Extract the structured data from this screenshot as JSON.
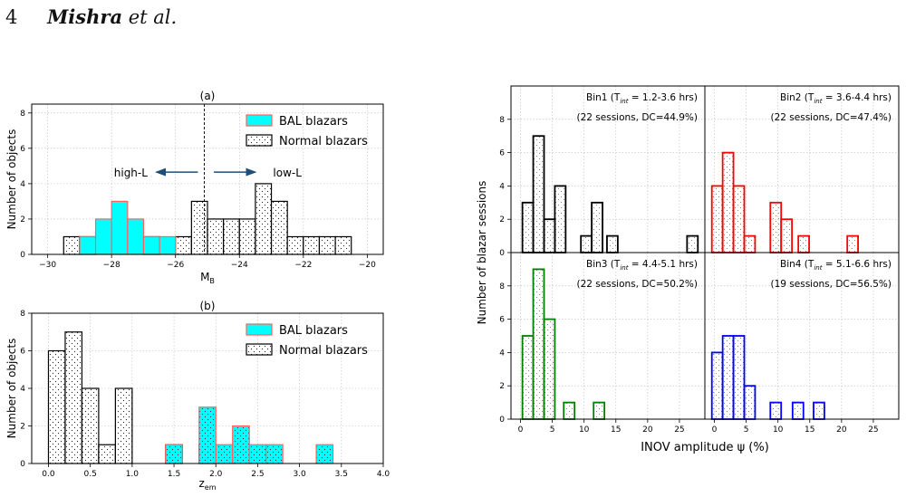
{
  "header": {
    "page_number": "4",
    "authors": "Mishra",
    "etal": "et al."
  },
  "patterns": {
    "normal": "dots-normal"
  },
  "chart_data": [
    {
      "id": "a",
      "type": "bar",
      "title": "(a)",
      "xlabel": "M",
      "xlabel_sub": "B",
      "ylabel": "Number of objects",
      "xlim": [
        -30.5,
        -19.5
      ],
      "ylim": [
        0,
        8.5
      ],
      "xticks": [
        -30,
        -28,
        -26,
        -24,
        -22,
        -20
      ],
      "xtick_labels": [
        "−30",
        "−28",
        "−26",
        "−24",
        "−22",
        "−20"
      ],
      "yticks": [
        0,
        2,
        4,
        6,
        8
      ],
      "ytick_labels": [
        "0",
        "2",
        "4",
        "6",
        "8"
      ],
      "bin_width": 0.5,
      "grid": true,
      "legend": "top-right",
      "vline": -25.1,
      "annotations": [
        {
          "text": "high-L",
          "x": -27.4,
          "y": 4.5,
          "arrow_from": -25.3,
          "arrow_to": -26.6
        },
        {
          "text": "low-L",
          "x": -22.5,
          "y": 4.5,
          "arrow_from": -24.8,
          "arrow_to": -23.5
        }
      ],
      "series": [
        {
          "name": "BAL blazars",
          "style": "bal",
          "color": "#00ffff",
          "edge": "#ff6060",
          "x_left": [
            -29.0,
            -28.5,
            -28.0,
            -27.5,
            -27.0,
            -26.5
          ],
          "values": [
            1,
            2,
            3,
            2,
            1,
            1
          ]
        },
        {
          "name": "Normal blazars",
          "style": "normal",
          "edge": "#000000",
          "x_left": [
            -29.5,
            -29.0,
            -27.0,
            -26.0,
            -25.5,
            -25.0,
            -24.5,
            -24.0,
            -23.5,
            -23.0,
            -22.5,
            -22.0,
            -21.5,
            -21.0
          ],
          "values": [
            1,
            1,
            1,
            1,
            3,
            2,
            2,
            2,
            4,
            3,
            1,
            1,
            1,
            1
          ]
        }
      ]
    },
    {
      "id": "b",
      "type": "bar",
      "title": "(b)",
      "xlabel": "z",
      "xlabel_sub": "em",
      "ylabel": "Number of objects",
      "xlim": [
        -0.2,
        4.0
      ],
      "ylim": [
        0,
        8
      ],
      "xticks": [
        0.0,
        0.5,
        1.0,
        1.5,
        2.0,
        2.5,
        3.0,
        3.5,
        4.0
      ],
      "xtick_labels": [
        "0.0",
        "0.5",
        "1.0",
        "1.5",
        "2.0",
        "2.5",
        "3.0",
        "3.5",
        "4.0"
      ],
      "yticks": [
        0,
        2,
        4,
        6,
        8
      ],
      "ytick_labels": [
        "0",
        "2",
        "4",
        "6",
        "8"
      ],
      "bin_width": 0.2,
      "grid": true,
      "legend": "top-right",
      "series": [
        {
          "name": "BAL blazars",
          "style": "bal",
          "color": "#00ffff",
          "edge": "#ff6060",
          "x_left": [
            1.4,
            1.8,
            2.0,
            2.2,
            2.4,
            2.6,
            3.2
          ],
          "values": [
            1,
            3,
            1,
            2,
            1,
            1,
            1
          ]
        },
        {
          "name": "Normal blazars",
          "style": "normal",
          "edge": "#000000",
          "x_left": [
            0.0,
            0.2,
            0.4,
            0.6,
            0.8,
            1.4,
            1.8
          ],
          "values": [
            6,
            7,
            4,
            1,
            4,
            1,
            1
          ]
        }
      ]
    },
    {
      "id": "c",
      "type": "bar",
      "panels": true,
      "ylabel": "Number of blazar sessions",
      "xlabel": "INOV amplitude ψ (%)",
      "xlim": [
        -1.5,
        29
      ],
      "ylim": [
        0,
        10
      ],
      "xticks": [
        0,
        5,
        10,
        15,
        20,
        25
      ],
      "xtick_labels": [
        "0",
        "5",
        "10",
        "15",
        "20",
        "25"
      ],
      "yticks": [
        0,
        2,
        4,
        6,
        8
      ],
      "ytick_labels": [
        "0",
        "2",
        "4",
        "6",
        "8"
      ],
      "bin_width": 1.7,
      "grid": true,
      "panel_list": [
        {
          "name": "Bin1",
          "tint": "1.2-3.6 hrs",
          "sessions": "(22 sessions, DC=44.9%)",
          "color": "#000000",
          "x_left": [
            0.3,
            2.0,
            3.7,
            5.4,
            9.5,
            11.2,
            13.6,
            26.2
          ],
          "values": [
            3,
            7,
            2,
            4,
            1,
            3,
            1,
            1
          ]
        },
        {
          "name": "Bin2",
          "tint": "3.6-4.4 hrs",
          "sessions": "(22 sessions, DC=47.4%)",
          "color": "#ff0000",
          "x_left": [
            -0.4,
            1.3,
            3.0,
            4.7,
            8.8,
            10.5,
            13.2,
            20.9
          ],
          "values": [
            4,
            6,
            4,
            1,
            3,
            2,
            1,
            1
          ]
        },
        {
          "name": "Bin3",
          "tint": "4.4-5.1 hrs",
          "sessions": "(22 sessions, DC=50.2%)",
          "color": "#008000",
          "x_left": [
            0.3,
            2.0,
            3.7,
            6.8,
            11.5
          ],
          "values": [
            5,
            9,
            6,
            1,
            1
          ]
        },
        {
          "name": "Bin4",
          "tint": "5.1-6.6 hrs",
          "sessions": "(19 sessions, DC=56.5%)",
          "color": "#0000ff",
          "x_left": [
            -0.4,
            1.3,
            3.0,
            4.7,
            8.8,
            12.3,
            15.6
          ],
          "values": [
            4,
            5,
            5,
            2,
            1,
            1,
            1
          ]
        }
      ]
    }
  ]
}
